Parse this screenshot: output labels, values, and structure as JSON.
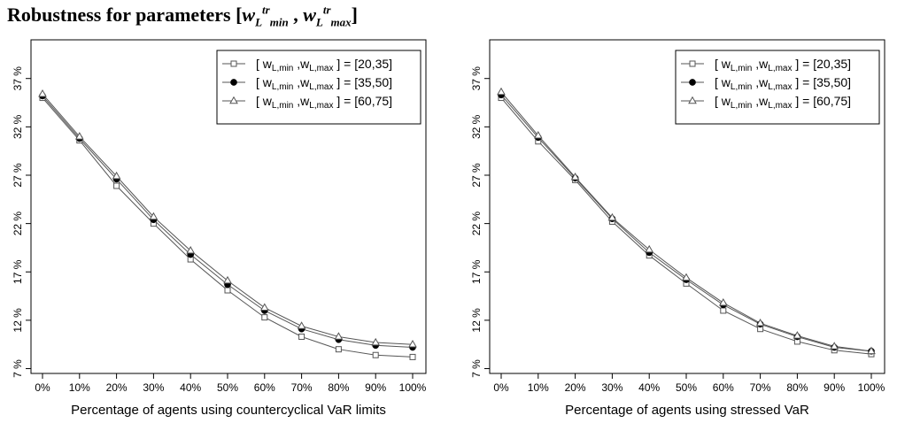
{
  "title": {
    "prefix": "Robustness for parameters [",
    "w1": "w",
    "L1": "L",
    "sup1": "tr",
    "sub1": "min",
    "comma": " , ",
    "w2": "w",
    "L2": "L",
    "sup2": "tr",
    "sub2": "max",
    "suffix": "]"
  },
  "legend_entries": [
    {
      "w": "w",
      "sub1": "L,min",
      "sep": ",",
      "sub2": "L,max",
      "value": "= [20,35]",
      "marker": "open-square"
    },
    {
      "w": "w",
      "sub1": "L,min",
      "sep": ",",
      "sub2": "L,max",
      "value": "= [35,50]",
      "marker": "filled-circle"
    },
    {
      "w": "w",
      "sub1": "L,min",
      "sep": ",",
      "sub2": "L,max",
      "value": "= [60,75]",
      "marker": "open-triangle"
    }
  ],
  "colors": {
    "line": "#555555",
    "axis": "#000000",
    "background": "#ffffff"
  },
  "chart_data": [
    {
      "type": "line",
      "xlabel": "Percentage of agents using countercyclical VaR limits",
      "ylabel": "",
      "categories": [
        "0%",
        "10%",
        "20%",
        "30%",
        "40%",
        "50%",
        "60%",
        "70%",
        "80%",
        "90%",
        "100%"
      ],
      "ytick_values": [
        7,
        12,
        17,
        22,
        27,
        32,
        37
      ],
      "ytick_labels": [
        "7 %",
        "12 %",
        "17 %",
        "22 %",
        "27 %",
        "32 %",
        "37 %"
      ],
      "ylim": [
        6.5,
        41
      ],
      "grid": false,
      "legend_position": "top-right",
      "series": [
        {
          "name": "[ wL,min ,wL,max ] = [20,35]",
          "marker": "open-square",
          "values": [
            35.0,
            30.6,
            25.9,
            22.0,
            18.3,
            15.1,
            12.3,
            10.3,
            9.0,
            8.4,
            8.2
          ]
        },
        {
          "name": "[ wL,min ,wL,max ] = [35,50]",
          "marker": "filled-circle",
          "values": [
            35.2,
            30.8,
            26.6,
            22.4,
            18.8,
            15.7,
            13.0,
            11.1,
            10.0,
            9.4,
            9.2
          ]
        },
        {
          "name": "[ wL,min ,wL,max ] = [60,75]",
          "marker": "open-triangle",
          "values": [
            35.4,
            31.0,
            26.9,
            22.7,
            19.2,
            16.1,
            13.3,
            11.4,
            10.3,
            9.7,
            9.5
          ]
        }
      ]
    },
    {
      "type": "line",
      "xlabel": "Percentage of agents using stressed VaR",
      "ylabel": "",
      "categories": [
        "0%",
        "10%",
        "20%",
        "30%",
        "40%",
        "50%",
        "60%",
        "70%",
        "80%",
        "90%",
        "100%"
      ],
      "ytick_values": [
        7,
        12,
        17,
        22,
        27,
        32,
        37
      ],
      "ytick_labels": [
        "7 %",
        "12 %",
        "17 %",
        "22 %",
        "27 %",
        "32 %",
        "37 %"
      ],
      "ylim": [
        6.5,
        41
      ],
      "grid": false,
      "legend_position": "top-right",
      "series": [
        {
          "name": "[ wL,min ,wL,max ] = [20,35]",
          "marker": "open-square",
          "values": [
            35.0,
            30.5,
            26.5,
            22.2,
            18.7,
            15.8,
            13.0,
            11.1,
            9.8,
            8.9,
            8.5
          ]
        },
        {
          "name": "[ wL,min ,wL,max ] = [35,50]",
          "marker": "filled-circle",
          "values": [
            35.3,
            30.9,
            26.7,
            22.5,
            19.0,
            16.2,
            13.6,
            11.6,
            10.3,
            9.2,
            8.8
          ]
        },
        {
          "name": "[ wL,min ,wL,max ] = [60,75]",
          "marker": "open-triangle",
          "values": [
            35.6,
            31.1,
            26.8,
            22.6,
            19.3,
            16.4,
            13.8,
            11.7,
            10.4,
            9.3,
            8.8
          ]
        }
      ]
    }
  ]
}
